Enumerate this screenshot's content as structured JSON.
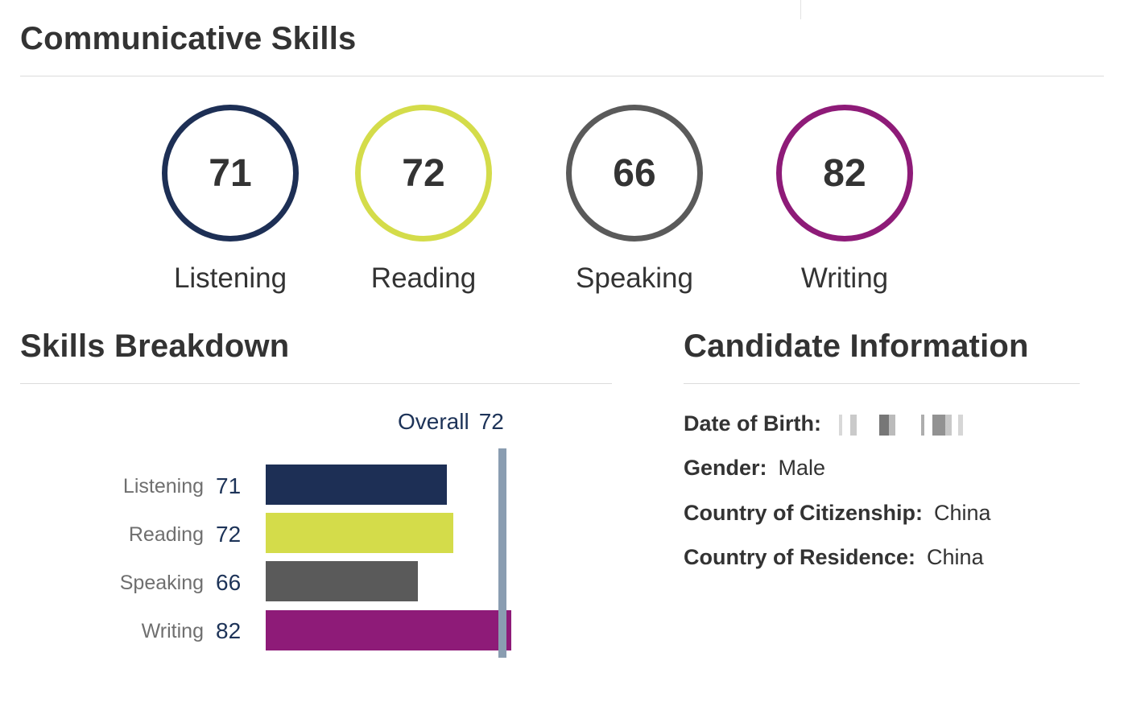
{
  "communicative": {
    "title": "Communicative Skills",
    "skills": [
      {
        "label": "Listening",
        "score": "71",
        "color": "#1d2f55"
      },
      {
        "label": "Reading",
        "score": "72",
        "color": "#d4dc4a"
      },
      {
        "label": "Speaking",
        "score": "66",
        "color": "#5a5a5a"
      },
      {
        "label": "Writing",
        "score": "82",
        "color": "#8e1b78"
      }
    ]
  },
  "breakdown": {
    "title": "Skills Breakdown",
    "overall_label": "Overall",
    "overall_value": "72",
    "rows": [
      {
        "label": "Listening",
        "score": "71",
        "value": 71,
        "color": "#1d2f55"
      },
      {
        "label": "Reading",
        "score": "72",
        "value": 72,
        "color": "#d4dc4a"
      },
      {
        "label": "Speaking",
        "score": "66",
        "value": 66,
        "color": "#5a5a5a"
      },
      {
        "label": "Writing",
        "score": "82",
        "value": 82,
        "color": "#8e1b78"
      }
    ],
    "marker_color": "#8a9db1"
  },
  "candidate": {
    "title": "Candidate Information",
    "dob_label": "Date of Birth:",
    "gender_label": "Gender:",
    "gender_value": "Male",
    "citizenship_label": "Country of Citizenship:",
    "citizenship_value": "China",
    "residence_label": "Country of Residence:",
    "residence_value": "China"
  }
}
